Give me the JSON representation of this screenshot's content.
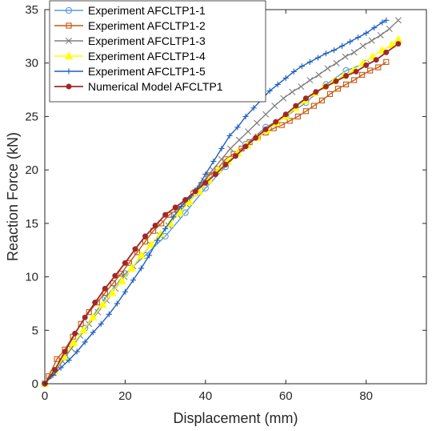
{
  "chart_data": {
    "type": "line",
    "title": "",
    "xlabel": "Displacement (mm)",
    "ylabel": "Reaction Force (kN)",
    "xlim": [
      0,
      95
    ],
    "ylim": [
      0,
      35
    ],
    "xticks": [
      "0",
      "20",
      "40",
      "60",
      "80"
    ],
    "yticks": [
      "0",
      "5",
      "10",
      "15",
      "20",
      "25",
      "30",
      "35"
    ],
    "xtick_values": [
      0,
      20,
      40,
      60,
      80
    ],
    "ytick_values": [
      0,
      5,
      10,
      15,
      20,
      25,
      30,
      35
    ],
    "grid": false,
    "legend_position": "top-left",
    "series": [
      {
        "name": "Experiment AFCLTP1-1",
        "color": "#5B9BD5",
        "marker": "circle",
        "x": [
          0,
          2,
          5,
          10,
          15,
          20,
          25,
          30,
          35,
          40,
          45,
          50,
          55,
          60,
          65,
          70,
          75,
          80
        ],
        "y": [
          0,
          1.0,
          2.5,
          5.2,
          8.0,
          10.3,
          12.0,
          13.8,
          16.0,
          18.3,
          20.3,
          22.4,
          24.0,
          25.0,
          26.3,
          28.0,
          29.3,
          30.0
        ]
      },
      {
        "name": "Experiment AFCLTP1-2",
        "color": "#C55A11",
        "marker": "square",
        "x": [
          0,
          1,
          3,
          5,
          7,
          9,
          11,
          13,
          15,
          17,
          19,
          21,
          23,
          25,
          27,
          29,
          31,
          33,
          35,
          37,
          39,
          41,
          43,
          45,
          47,
          49,
          51,
          53,
          55,
          57,
          59,
          61,
          63,
          65,
          67,
          69,
          71,
          73,
          75,
          77,
          79,
          81,
          83,
          85
        ],
        "y": [
          0,
          0.7,
          2.3,
          3.2,
          4.4,
          5.6,
          6.7,
          7.6,
          8.5,
          9.4,
          10.3,
          11.3,
          12.3,
          13.3,
          14.3,
          15.0,
          15.8,
          16.3,
          17.0,
          17.8,
          18.6,
          19.5,
          20.1,
          21.0,
          21.5,
          22.0,
          22.6,
          23.1,
          23.5,
          23.9,
          24.2,
          24.6,
          25.0,
          25.5,
          26.0,
          26.5,
          27.1,
          27.6,
          28.0,
          28.4,
          28.9,
          29.3,
          29.6,
          30.1
        ]
      },
      {
        "name": "Experiment AFCLTP1-3",
        "color": "#7F7F7F",
        "marker": "x",
        "x": [
          0,
          2.2,
          4.4,
          6.6,
          8.8,
          11,
          13.2,
          15.4,
          17.6,
          19.8,
          22,
          24.2,
          26.4,
          28.6,
          30.8,
          33,
          35.2,
          37.4,
          39.6,
          41.8,
          44,
          46.2,
          48.4,
          50.6,
          52.8,
          55,
          57.2,
          59.4,
          61.6,
          63.8,
          66,
          68.2,
          70.4,
          72.6,
          74.8,
          77,
          79.2,
          81.4,
          83.6,
          85.8,
          88
        ],
        "y": [
          0,
          1.0,
          2.1,
          3.3,
          4.5,
          5.6,
          6.7,
          7.8,
          8.9,
          10.0,
          11.0,
          12.0,
          13.0,
          13.9,
          14.8,
          15.8,
          16.8,
          17.9,
          19.0,
          20.0,
          21.0,
          22.0,
          22.8,
          23.6,
          24.4,
          25.2,
          26.0,
          26.7,
          27.3,
          27.8,
          28.4,
          28.9,
          29.5,
          30.0,
          30.6,
          31.0,
          31.6,
          32.1,
          32.6,
          33.2,
          34.0
        ]
      },
      {
        "name": "Experiment AFCLTP1-4",
        "color": "#FFFF00",
        "marker": "triangle",
        "x": [
          0,
          2.4,
          4.8,
          7.2,
          9.6,
          12,
          14.4,
          16.8,
          19.2,
          21.6,
          24,
          26.4,
          28.8,
          31.2,
          33.6,
          36,
          38.4,
          40.8,
          43.2,
          45.6,
          48,
          50.4,
          52.8,
          55.2,
          57.6,
          60,
          62.4,
          64.8,
          67.2,
          69.6,
          72,
          74.4,
          76.8,
          79.2,
          81.6,
          84,
          86.4,
          88
        ],
        "y": [
          0,
          1.2,
          2.5,
          3.8,
          5.0,
          6.2,
          7.4,
          8.5,
          9.6,
          10.8,
          12.0,
          13.0,
          14.0,
          15.0,
          16.0,
          17.0,
          18.0,
          19.0,
          20.0,
          20.8,
          21.6,
          22.3,
          23.0,
          23.7,
          24.4,
          25.0,
          25.8,
          26.5,
          27.2,
          27.8,
          28.3,
          28.8,
          29.3,
          30.0,
          30.6,
          31.2,
          31.7,
          32.2
        ]
      },
      {
        "name": "Experiment AFCLTP1-5",
        "color": "#1F5FBF",
        "marker": "plus",
        "x": [
          0,
          2,
          4,
          6,
          8,
          10,
          12,
          14,
          16,
          18,
          20,
          22,
          24,
          26,
          28,
          30,
          32,
          34,
          36,
          38,
          40,
          42,
          44,
          46,
          48,
          50,
          52,
          54,
          56,
          58,
          60,
          62,
          64,
          66,
          68,
          70,
          72,
          74,
          76,
          78,
          80,
          82,
          84,
          85
        ],
        "y": [
          0,
          0.8,
          1.5,
          2.2,
          3.0,
          3.9,
          4.8,
          5.6,
          6.5,
          7.5,
          8.6,
          9.7,
          10.8,
          12.0,
          13.4,
          14.5,
          15.6,
          16.6,
          17.4,
          18.3,
          19.6,
          20.8,
          22.0,
          23.2,
          24.0,
          25.0,
          25.8,
          26.6,
          27.4,
          28.0,
          28.6,
          29.2,
          29.7,
          30.1,
          30.5,
          30.9,
          31.2,
          31.6,
          32.0,
          32.4,
          32.8,
          33.3,
          33.8,
          34.0
        ]
      },
      {
        "name": "Numerical Model AFCLTP1",
        "color": "#A0282A",
        "marker": "dot",
        "x": [
          0,
          2.5,
          5,
          7.5,
          10,
          12.5,
          15,
          17.5,
          20,
          22.5,
          25,
          27.5,
          30,
          32.5,
          35,
          37.5,
          40,
          42.5,
          45,
          47.5,
          50,
          52.5,
          55,
          57.5,
          60,
          62.5,
          65,
          67.5,
          70,
          72.5,
          75,
          77.5,
          80,
          82.5,
          85,
          88
        ],
        "y": [
          0,
          1.3,
          3.0,
          4.7,
          6.2,
          7.6,
          8.9,
          10.1,
          11.3,
          12.6,
          13.8,
          14.8,
          15.8,
          16.5,
          17.2,
          18.0,
          18.8,
          19.6,
          20.5,
          21.3,
          22.2,
          23.0,
          23.8,
          24.5,
          25.2,
          26.0,
          26.7,
          27.3,
          27.8,
          28.3,
          28.8,
          29.2,
          29.8,
          30.3,
          31.0,
          31.8
        ]
      }
    ]
  }
}
